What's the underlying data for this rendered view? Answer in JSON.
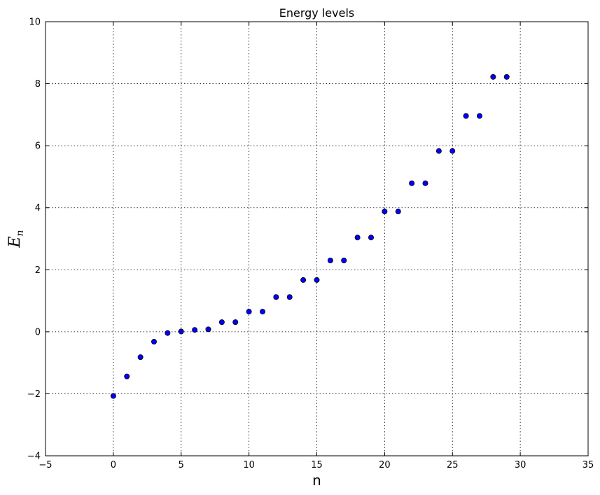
{
  "chart_data": {
    "type": "scatter",
    "title": "Energy levels",
    "xlabel": "n",
    "ylabel_main": "E",
    "ylabel_sub": "n",
    "xlim": [
      -5,
      35
    ],
    "ylim": [
      -4,
      10
    ],
    "xticks": [
      -5,
      0,
      5,
      10,
      15,
      20,
      25,
      30,
      35
    ],
    "yticks": [
      -4,
      -2,
      0,
      2,
      4,
      6,
      8,
      10
    ],
    "xtick_labels": [
      "−5",
      "0",
      "5",
      "10",
      "15",
      "20",
      "25",
      "30",
      "35"
    ],
    "ytick_labels": [
      "−4",
      "−2",
      "0",
      "2",
      "4",
      "6",
      "8",
      "10"
    ],
    "grid": true,
    "marker_color": "#0000ff",
    "x": [
      0,
      1,
      2,
      3,
      4,
      5,
      6,
      7,
      8,
      9,
      10,
      11,
      12,
      13,
      14,
      15,
      16,
      17,
      18,
      19,
      20,
      21,
      22,
      23,
      24,
      25,
      26,
      27,
      28,
      29
    ],
    "y": [
      -2.07,
      -1.44,
      -0.82,
      -0.32,
      -0.04,
      0.01,
      0.06,
      0.08,
      0.31,
      0.31,
      0.65,
      0.65,
      1.12,
      1.12,
      1.67,
      1.67,
      2.3,
      2.3,
      3.04,
      3.04,
      3.88,
      3.88,
      4.79,
      4.79,
      5.83,
      5.83,
      6.96,
      6.96,
      8.22,
      8.22
    ]
  }
}
